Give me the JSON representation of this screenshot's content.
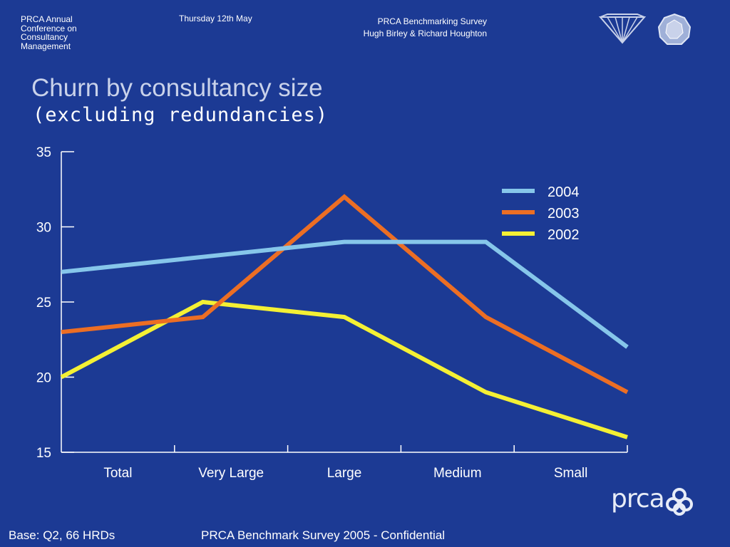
{
  "header": {
    "conference": "PRCA Annual Conference on Consultancy Management",
    "date": "Thursday 12th May",
    "survey_line1": "PRCA Benchmarking Survey",
    "survey_line2": "Hugh Birley & Richard Houghton"
  },
  "icons": {
    "left_logo": "diamond-icon",
    "right_logo": "gem-icon",
    "brand": "prca-logo"
  },
  "chart_data": {
    "type": "line",
    "title": "Churn by consultancy size",
    "subtitle": "(excluding redundancies)",
    "categories": [
      "Total",
      "Very Large",
      "Large",
      "Medium",
      "Small"
    ],
    "ylim": [
      15,
      35
    ],
    "yticks": [
      15,
      20,
      25,
      30,
      35
    ],
    "legend_position": "top-right",
    "grid": false,
    "series": [
      {
        "name": "2004",
        "color": "#86c6ea",
        "values": [
          27,
          28,
          29,
          29,
          22
        ]
      },
      {
        "name": "2003",
        "color": "#ec6e24",
        "values": [
          23,
          24,
          32,
          24,
          19
        ]
      },
      {
        "name": "2002",
        "color": "#f4f034",
        "values": [
          20,
          25,
          24,
          19,
          16
        ]
      }
    ]
  },
  "footer": {
    "base": "Base: Q2, 66 HRDs",
    "confidential": "PRCA Benchmark Survey 2005 - Confidential"
  },
  "brand": {
    "text": "prca"
  }
}
